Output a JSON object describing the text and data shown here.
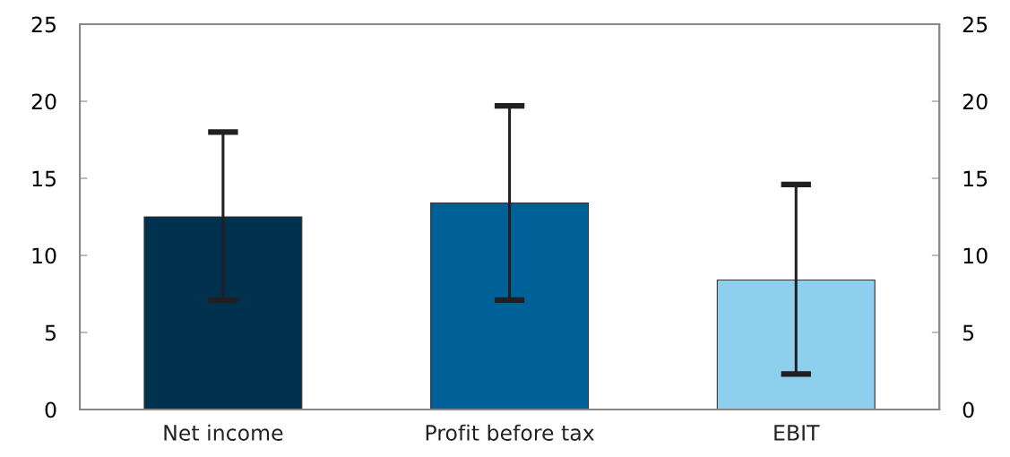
{
  "chart_data": {
    "type": "bar",
    "categories": [
      "Net income",
      "Profit before tax",
      "EBIT"
    ],
    "values": [
      12.5,
      13.4,
      8.4
    ],
    "colors": [
      "#00324f",
      "#006199",
      "#8ecfee"
    ],
    "errors": [
      [
        7.1,
        18.0
      ],
      [
        7.1,
        19.7
      ],
      [
        2.3,
        14.6
      ]
    ],
    "ylim": [
      0,
      25
    ],
    "yticks": [
      0,
      5,
      10,
      15,
      20,
      25
    ],
    "y2lim": [
      0,
      25
    ],
    "y2ticks": [
      0,
      5,
      10,
      15,
      20,
      25
    ],
    "grid": false,
    "legend": false
  }
}
